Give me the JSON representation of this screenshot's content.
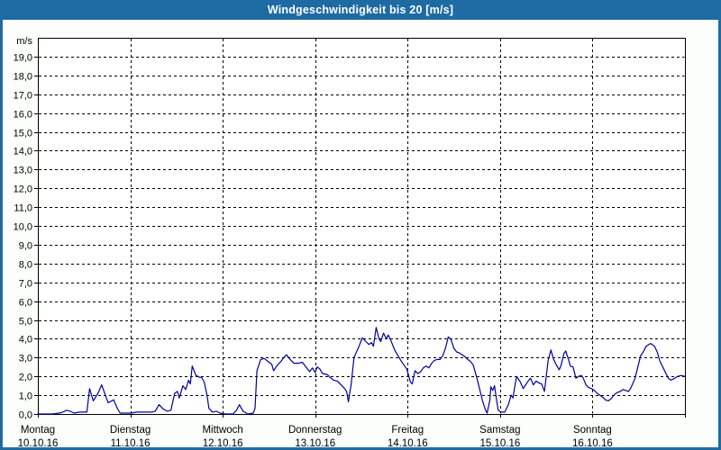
{
  "window": {
    "title": "Windgeschwindigkeit bis 20 [m/s]"
  },
  "colors": {
    "titlebar_bg": "#1e6ba3",
    "titlebar_text": "#ffffff",
    "frame_border": "#1e6ba3",
    "plot_background": "#ffffff",
    "axis_color": "#000000",
    "line_color": "#0000a0"
  },
  "chart_data": {
    "type": "line",
    "title": "Windgeschwindigkeit bis 20 [m/s]",
    "ylabel": "m/s",
    "ylim": [
      0,
      20
    ],
    "xlim_days": [
      0,
      7
    ],
    "grid": {
      "horizontal": "dashed every 1,0 m/s",
      "vertical": "dashed at each day boundary"
    },
    "legend": "none",
    "y_ticks": [
      "0,0",
      "1,0",
      "2,0",
      "3,0",
      "4,0",
      "5,0",
      "6,0",
      "7,0",
      "8,0",
      "9,0",
      "10,0",
      "11,0",
      "12,0",
      "13,0",
      "14,0",
      "15,0",
      "16,0",
      "17,0",
      "18,0",
      "19,0"
    ],
    "x_days": [
      {
        "name": "Montag",
        "date": "10.10.16"
      },
      {
        "name": "Dienstag",
        "date": "11.10.16"
      },
      {
        "name": "Mittwoch",
        "date": "12.10.16"
      },
      {
        "name": "Donnerstag",
        "date": "13.10.16"
      },
      {
        "name": "Freitag",
        "date": "14.10.16"
      },
      {
        "name": "Samstag",
        "date": "15.10.16"
      },
      {
        "name": "Sonntag",
        "date": "16.10.16"
      }
    ],
    "series": [
      {
        "name": "Windgeschwindigkeit",
        "unit": "m/s",
        "color": "#0000a0",
        "points_days_value": [
          [
            0,
            0
          ],
          [
            0.16,
            0
          ],
          [
            0.23,
            0.05
          ],
          [
            0.27,
            0.1
          ],
          [
            0.31,
            0.2
          ],
          [
            0.35,
            0.15
          ],
          [
            0.39,
            0.05
          ],
          [
            0.45,
            0.1
          ],
          [
            0.53,
            0.1
          ],
          [
            0.56,
            1.35
          ],
          [
            0.6,
            0.7
          ],
          [
            0.65,
            1.1
          ],
          [
            0.69,
            1.55
          ],
          [
            0.73,
            1
          ],
          [
            0.76,
            0.6
          ],
          [
            0.82,
            0.75
          ],
          [
            0.86,
            0.3
          ],
          [
            0.89,
            0.05
          ],
          [
            0.96,
            0.05
          ],
          [
            1.01,
            0.05
          ],
          [
            1.07,
            0.1
          ],
          [
            1.15,
            0.1
          ],
          [
            1.23,
            0.1
          ],
          [
            1.27,
            0.15
          ],
          [
            1.31,
            0.5
          ],
          [
            1.36,
            0.25
          ],
          [
            1.4,
            0.15
          ],
          [
            1.44,
            0.2
          ],
          [
            1.48,
            1.1
          ],
          [
            1.51,
            1.2
          ],
          [
            1.53,
            0.85
          ],
          [
            1.57,
            1.5
          ],
          [
            1.6,
            1.3
          ],
          [
            1.63,
            1.8
          ],
          [
            1.65,
            1.6
          ],
          [
            1.67,
            2.55
          ],
          [
            1.71,
            2.05
          ],
          [
            1.75,
            1.95
          ],
          [
            1.77,
            1.95
          ],
          [
            1.8,
            1.7
          ],
          [
            1.83,
            1
          ],
          [
            1.85,
            0.3
          ],
          [
            1.89,
            0.1
          ],
          [
            1.93,
            0.15
          ],
          [
            1.97,
            0.05
          ],
          [
            2.03,
            0
          ],
          [
            2.11,
            0
          ],
          [
            2.15,
            0.2
          ],
          [
            2.18,
            0.5
          ],
          [
            2.22,
            0.15
          ],
          [
            2.27,
            0
          ],
          [
            2.33,
            0.05
          ],
          [
            2.35,
            0.3
          ],
          [
            2.37,
            2.3
          ],
          [
            2.41,
            2.9
          ],
          [
            2.45,
            2.95
          ],
          [
            2.5,
            2.75
          ],
          [
            2.53,
            2.65
          ],
          [
            2.55,
            2.3
          ],
          [
            2.59,
            2.6
          ],
          [
            2.63,
            2.8
          ],
          [
            2.66,
            3
          ],
          [
            2.69,
            3.15
          ],
          [
            2.73,
            2.9
          ],
          [
            2.77,
            2.7
          ],
          [
            2.82,
            2.7
          ],
          [
            2.86,
            2.75
          ],
          [
            2.9,
            2.5
          ],
          [
            2.94,
            2.25
          ],
          [
            2.97,
            2.45
          ],
          [
            3,
            2.2
          ],
          [
            3.02,
            2.5
          ],
          [
            3.05,
            2.4
          ],
          [
            3.08,
            2.15
          ],
          [
            3.13,
            2.1
          ],
          [
            3.16,
            1.95
          ],
          [
            3.2,
            1.8
          ],
          [
            3.24,
            1.75
          ],
          [
            3.28,
            1.55
          ],
          [
            3.31,
            1.4
          ],
          [
            3.34,
            1.2
          ],
          [
            3.36,
            0.65
          ],
          [
            3.39,
            1.6
          ],
          [
            3.42,
            3
          ],
          [
            3.47,
            3.55
          ],
          [
            3.51,
            4.05
          ],
          [
            3.55,
            3.85
          ],
          [
            3.58,
            3.7
          ],
          [
            3.61,
            3.8
          ],
          [
            3.63,
            3.6
          ],
          [
            3.66,
            4.6
          ],
          [
            3.69,
            4
          ],
          [
            3.71,
            3.85
          ],
          [
            3.74,
            4.3
          ],
          [
            3.77,
            4
          ],
          [
            3.79,
            4.2
          ],
          [
            3.82,
            3.9
          ],
          [
            3.86,
            3.4
          ],
          [
            3.89,
            3.15
          ],
          [
            3.92,
            2.9
          ],
          [
            3.96,
            2.6
          ],
          [
            3.99,
            2.4
          ],
          [
            4.03,
            1.7
          ],
          [
            4.05,
            1.6
          ],
          [
            4.08,
            2.3
          ],
          [
            4.11,
            2.15
          ],
          [
            4.14,
            2.25
          ],
          [
            4.17,
            2.45
          ],
          [
            4.2,
            2.55
          ],
          [
            4.23,
            2.45
          ],
          [
            4.26,
            2.7
          ],
          [
            4.29,
            2.85
          ],
          [
            4.32,
            2.9
          ],
          [
            4.35,
            2.9
          ],
          [
            4.38,
            3.1
          ],
          [
            4.41,
            3.5
          ],
          [
            4.44,
            4.1
          ],
          [
            4.47,
            3.95
          ],
          [
            4.5,
            3.5
          ],
          [
            4.53,
            3.3
          ],
          [
            4.56,
            3.25
          ],
          [
            4.59,
            3.15
          ],
          [
            4.62,
            3.05
          ],
          [
            4.65,
            2.9
          ],
          [
            4.68,
            2.8
          ],
          [
            4.71,
            2.6
          ],
          [
            4.75,
            1.9
          ],
          [
            4.78,
            1.3
          ],
          [
            4.81,
            0.7
          ],
          [
            4.84,
            0.25
          ],
          [
            4.86,
            0.05
          ],
          [
            4.89,
            0.75
          ],
          [
            4.9,
            1.45
          ],
          [
            4.92,
            1.25
          ],
          [
            4.94,
            1.5
          ],
          [
            4.96,
            0.8
          ],
          [
            4.98,
            0.2
          ],
          [
            5.01,
            0.1
          ],
          [
            5.05,
            0.1
          ],
          [
            5.09,
            0.5
          ],
          [
            5.12,
            1
          ],
          [
            5.14,
            0.85
          ],
          [
            5.16,
            1.5
          ],
          [
            5.18,
            2
          ],
          [
            5.22,
            1.7
          ],
          [
            5.25,
            1.35
          ],
          [
            5.27,
            1.5
          ],
          [
            5.31,
            1.8
          ],
          [
            5.33,
            1.9
          ],
          [
            5.36,
            1.55
          ],
          [
            5.39,
            1.75
          ],
          [
            5.42,
            1.65
          ],
          [
            5.45,
            1.6
          ],
          [
            5.48,
            1.2
          ],
          [
            5.5,
            2
          ],
          [
            5.52,
            2.85
          ],
          [
            5.55,
            3.4
          ],
          [
            5.58,
            2.9
          ],
          [
            5.61,
            2.6
          ],
          [
            5.64,
            2.35
          ],
          [
            5.66,
            2.6
          ],
          [
            5.69,
            3.2
          ],
          [
            5.71,
            3.35
          ],
          [
            5.74,
            2.9
          ],
          [
            5.76,
            2.55
          ],
          [
            5.79,
            2.5
          ],
          [
            5.82,
            1.9
          ],
          [
            5.85,
            2
          ],
          [
            5.88,
            2.05
          ],
          [
            5.9,
            1.9
          ],
          [
            5.93,
            1.55
          ],
          [
            5.96,
            1.4
          ],
          [
            5.99,
            1.35
          ],
          [
            6.02,
            1.25
          ],
          [
            6.05,
            1.1
          ],
          [
            6.08,
            1
          ],
          [
            6.11,
            0.9
          ],
          [
            6.14,
            0.75
          ],
          [
            6.17,
            0.7
          ],
          [
            6.2,
            0.8
          ],
          [
            6.24,
            1.05
          ],
          [
            6.27,
            1.15
          ],
          [
            6.3,
            1.2
          ],
          [
            6.33,
            1.3
          ],
          [
            6.36,
            1.25
          ],
          [
            6.39,
            1.2
          ],
          [
            6.41,
            1.35
          ],
          [
            6.43,
            1.55
          ],
          [
            6.46,
            1.9
          ],
          [
            6.49,
            2.5
          ],
          [
            6.52,
            3.1
          ],
          [
            6.55,
            3.3
          ],
          [
            6.58,
            3.6
          ],
          [
            6.61,
            3.7
          ],
          [
            6.63,
            3.75
          ],
          [
            6.67,
            3.6
          ],
          [
            6.7,
            3.3
          ],
          [
            6.73,
            2.8
          ],
          [
            6.76,
            2.5
          ],
          [
            6.8,
            2.1
          ],
          [
            6.82,
            1.9
          ],
          [
            6.85,
            1.8
          ],
          [
            6.89,
            1.9
          ],
          [
            6.92,
            2
          ],
          [
            6.96,
            2.05
          ],
          [
            7,
            2
          ]
        ]
      }
    ]
  }
}
